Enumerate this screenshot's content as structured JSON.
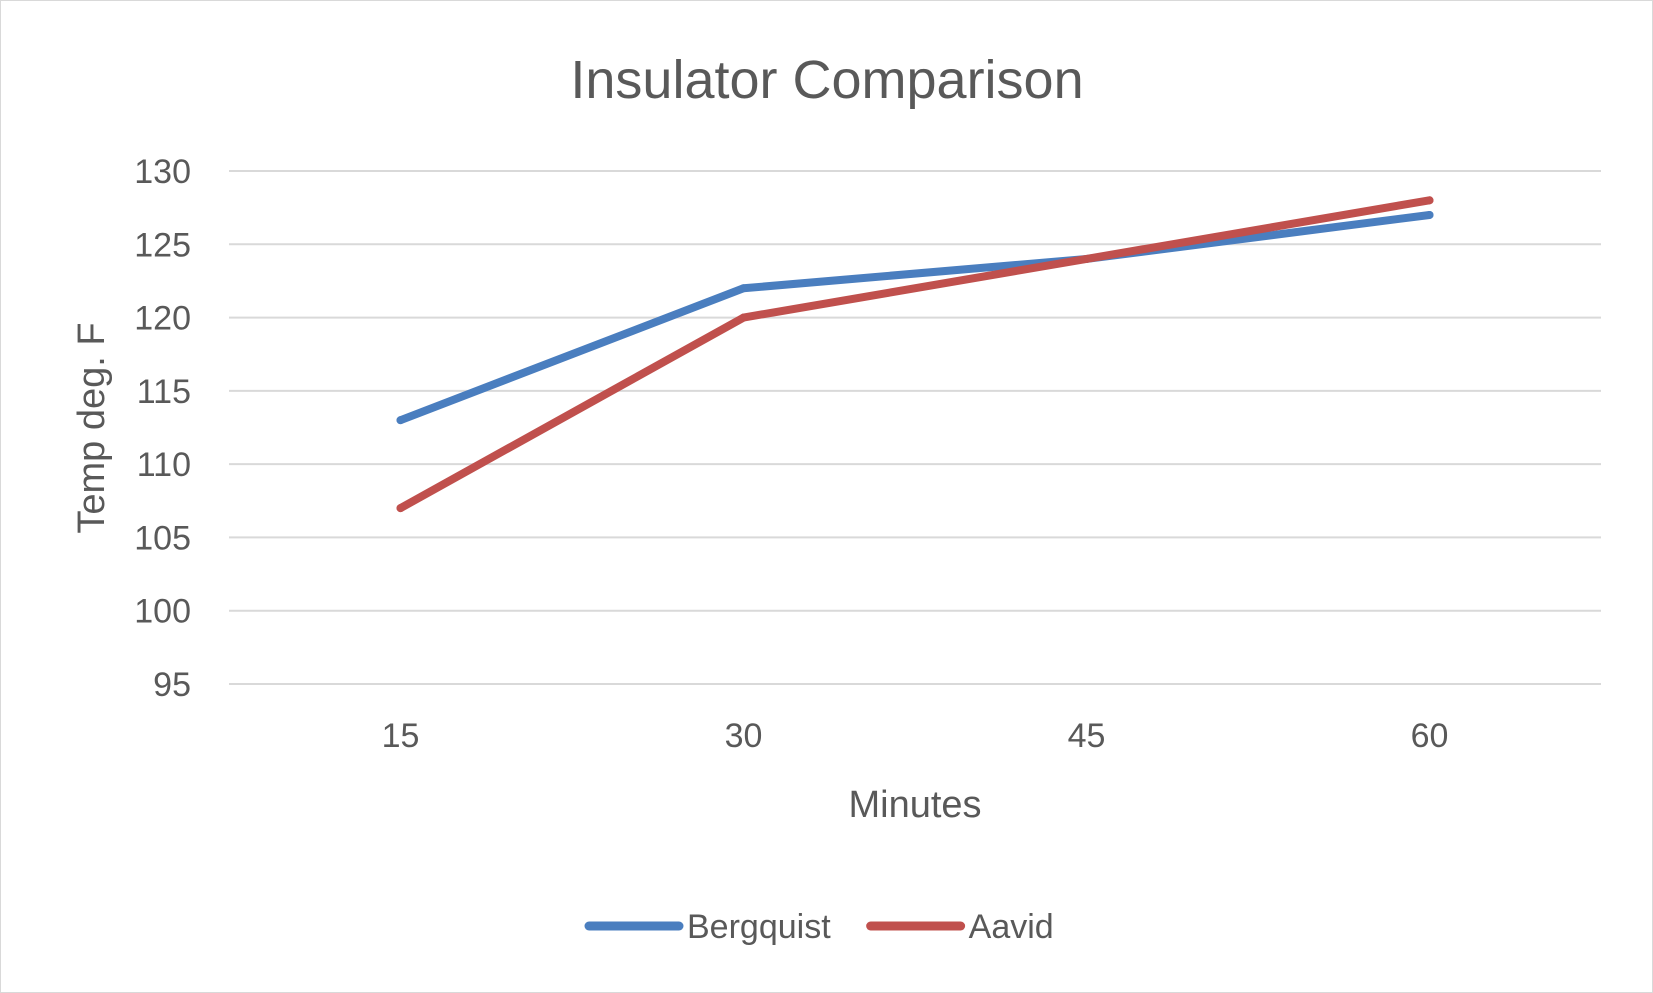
{
  "chart_data": {
    "type": "line",
    "title": "Insulator Comparison",
    "xlabel": "Minutes",
    "ylabel": "Temp deg. F",
    "categories": [
      "15",
      "30",
      "45",
      "60"
    ],
    "ylim": [
      95,
      130
    ],
    "yticks": [
      95,
      100,
      105,
      110,
      115,
      120,
      125,
      130
    ],
    "grid": true,
    "legend_position": "bottom",
    "series": [
      {
        "name": "Bergquist",
        "color": "#4a7ebf",
        "values": [
          113,
          122,
          124,
          127
        ]
      },
      {
        "name": "Aavid",
        "color": "#c0504d",
        "values": [
          107,
          120,
          124,
          128
        ]
      }
    ]
  }
}
